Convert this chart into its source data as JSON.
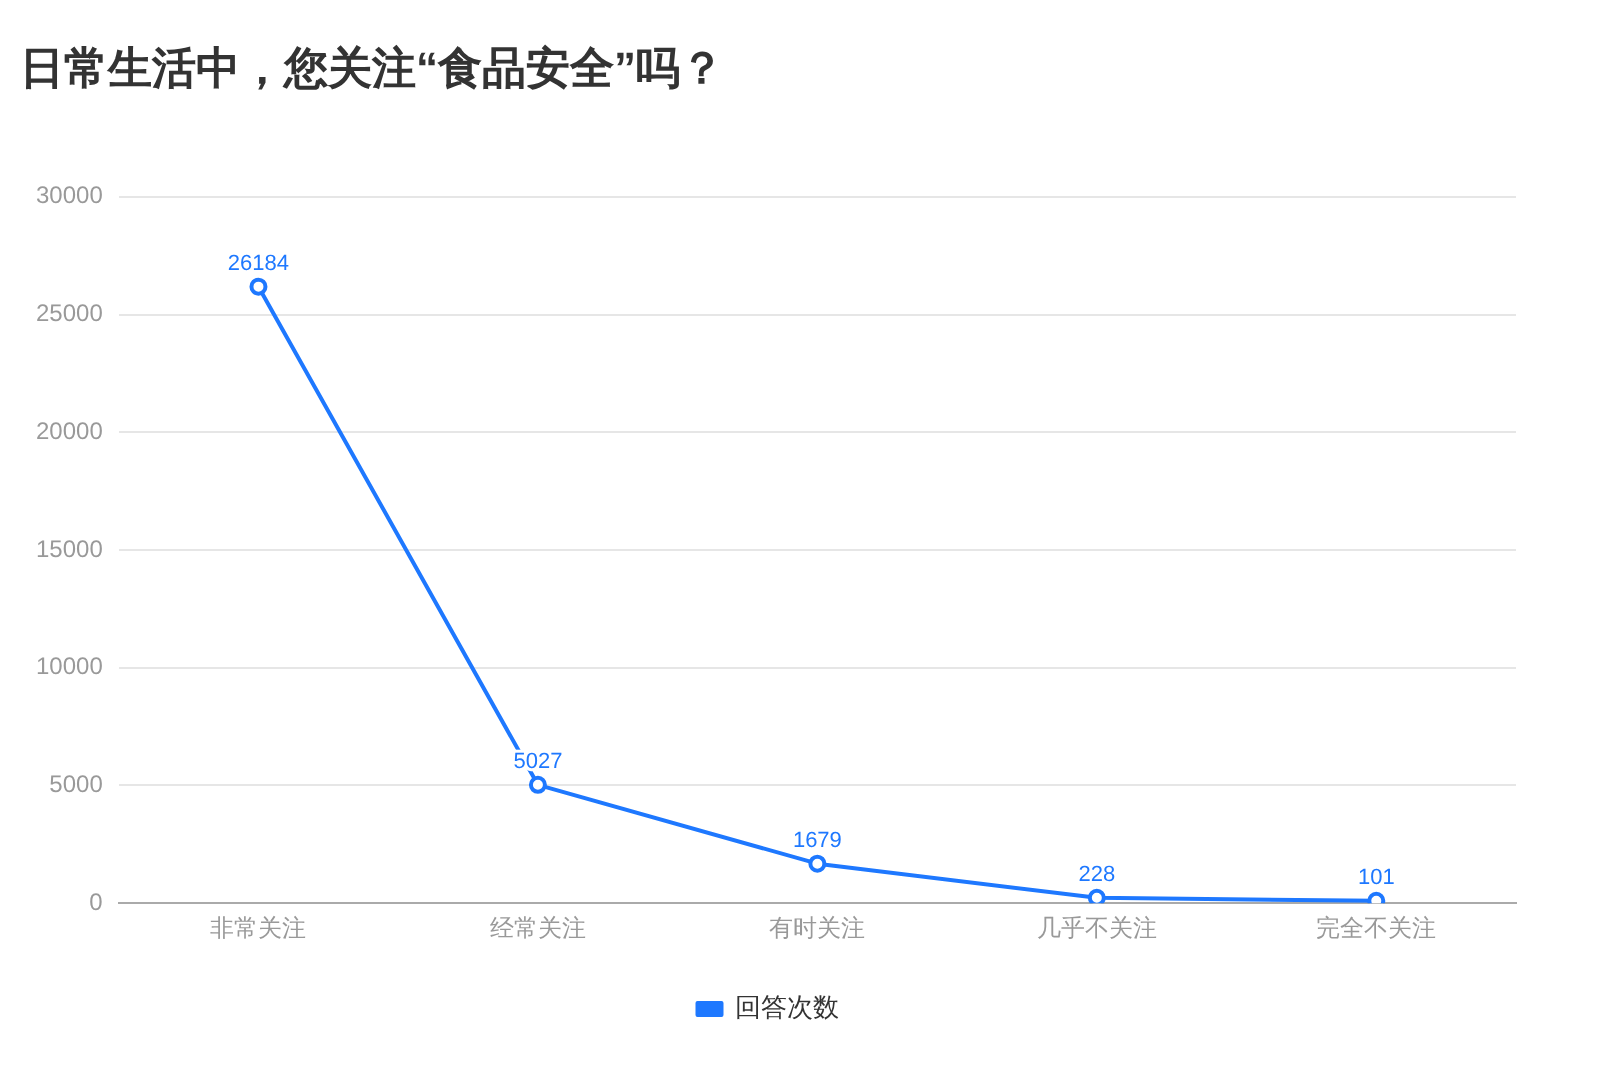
{
  "chart_data": {
    "type": "line",
    "title": "日常生活中，您关注“食品安全”吗？",
    "categories": [
      "非常关注",
      "经常关注",
      "有时关注",
      "几乎不关注",
      "完全不关注"
    ],
    "series": [
      {
        "name": "回答次数",
        "color": "#1e78ff",
        "values": [
          26184,
          5027,
          1679,
          228,
          101
        ]
      }
    ],
    "ylim": [
      0,
      30000
    ],
    "yticks": [
      0,
      5000,
      10000,
      15000,
      20000,
      25000,
      30000
    ],
    "grid": "y",
    "legend": "bottom",
    "marker": "circle",
    "line_style": "solid",
    "data_labels": true
  }
}
